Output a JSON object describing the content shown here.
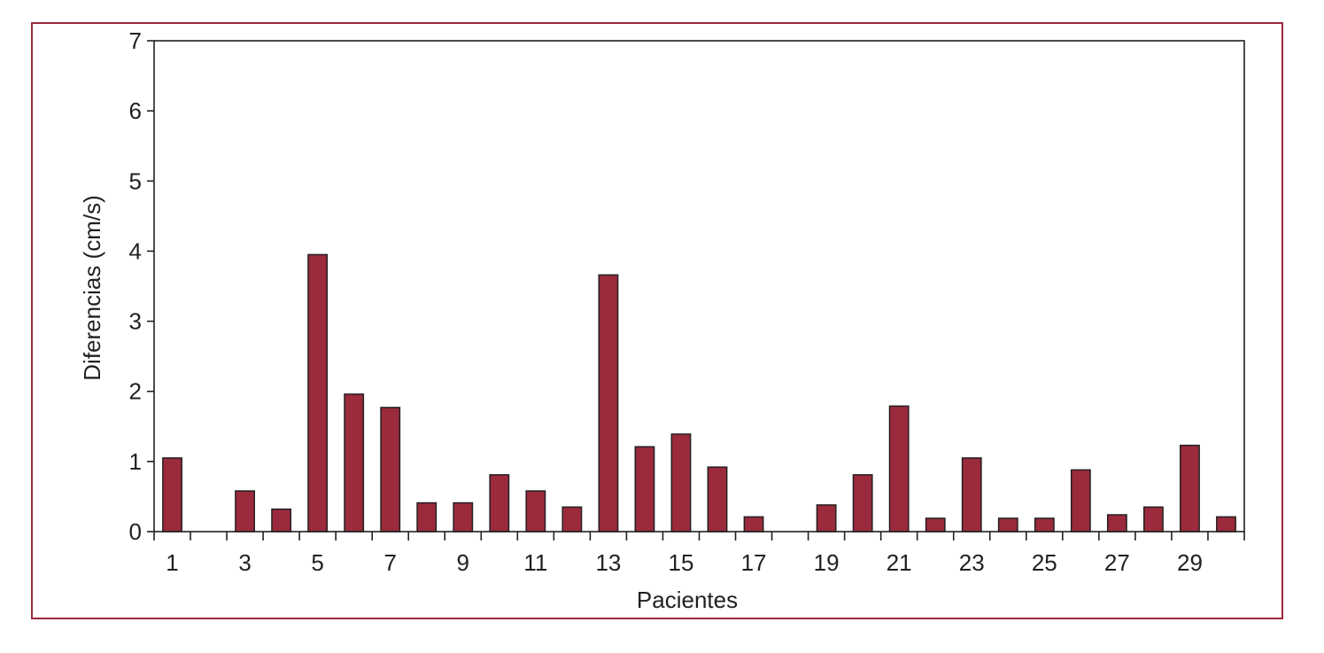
{
  "chart_data": {
    "type": "bar",
    "xlabel": "Pacientes",
    "ylabel": "Diferencias (cm/s)",
    "ylim": [
      0,
      7
    ],
    "yticks": [
      0,
      1,
      2,
      3,
      4,
      5,
      6,
      7
    ],
    "categories": [
      1,
      2,
      3,
      4,
      5,
      6,
      7,
      8,
      9,
      10,
      11,
      12,
      13,
      14,
      15,
      16,
      17,
      18,
      19,
      20,
      21,
      22,
      23,
      24,
      25,
      26,
      27,
      28,
      29,
      30
    ],
    "xtick_labels": [
      "1",
      "3",
      "5",
      "7",
      "9",
      "11",
      "13",
      "15",
      "17",
      "19",
      "21",
      "23",
      "25",
      "27",
      "29"
    ],
    "values": [
      1.05,
      0,
      0.58,
      0.32,
      3.95,
      1.96,
      1.77,
      0.41,
      0.41,
      0.81,
      0.58,
      0.35,
      3.66,
      1.21,
      1.39,
      0.92,
      0.21,
      0,
      0.38,
      0.81,
      1.79,
      0.19,
      1.05,
      0.19,
      0.19,
      0.88,
      0.24,
      0.35,
      1.23,
      0.21
    ],
    "grid": false,
    "colors": {
      "bar": "#9b2a3c",
      "frame": "#9b2a3c",
      "axis": "#231f20"
    }
  }
}
